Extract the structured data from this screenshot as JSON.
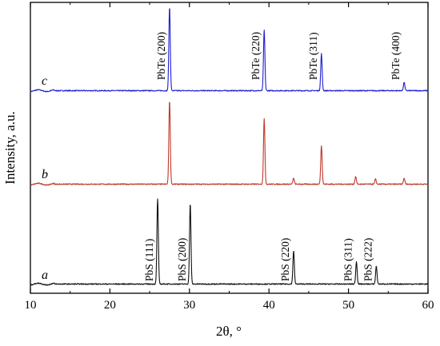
{
  "chart_data": {
    "type": "line",
    "xlabel": "2θ, °",
    "ylabel": "Intensity, a.u.",
    "xlim": [
      10,
      60
    ],
    "x_ticks": [
      "10",
      "20",
      "30",
      "40",
      "50",
      "60"
    ],
    "series": [
      {
        "name": "c",
        "color": "#1f1fd2",
        "baseline": 0.1,
        "peaks": [
          {
            "x": 27.5,
            "height": 1.0,
            "label": "PbTe (200)"
          },
          {
            "x": 39.4,
            "height": 0.72,
            "label": "PbTe (220)"
          },
          {
            "x": 46.6,
            "height": 0.44,
            "label": "PbTe (311)"
          },
          {
            "x": 57.0,
            "height": 0.1,
            "label": "PbTe (400)"
          }
        ]
      },
      {
        "name": "b",
        "color": "#c0392b",
        "baseline": 0.1,
        "peaks": [
          {
            "x": 27.5,
            "height": 1.0
          },
          {
            "x": 39.4,
            "height": 0.78
          },
          {
            "x": 43.1,
            "height": 0.07
          },
          {
            "x": 46.6,
            "height": 0.46
          },
          {
            "x": 50.9,
            "height": 0.09
          },
          {
            "x": 53.4,
            "height": 0.06
          },
          {
            "x": 57.0,
            "height": 0.07
          }
        ]
      },
      {
        "name": "a",
        "color": "#111111",
        "baseline": 0.1,
        "peaks": [
          {
            "x": 26.0,
            "height": 1.0,
            "label": "PbS (111)"
          },
          {
            "x": 30.1,
            "height": 0.94,
            "label": "PbS (200)"
          },
          {
            "x": 43.1,
            "height": 0.39,
            "label": "PbS (220)"
          },
          {
            "x": 51.0,
            "height": 0.26,
            "label": "PbS (311)"
          },
          {
            "x": 53.5,
            "height": 0.21,
            "label": "PbS (222)"
          }
        ]
      }
    ]
  }
}
